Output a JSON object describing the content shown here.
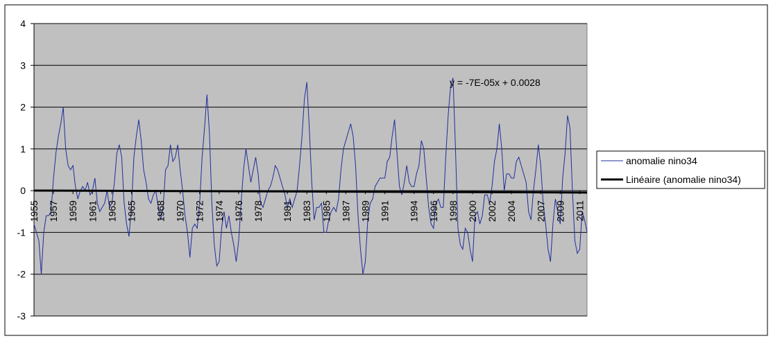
{
  "chart_data": {
    "type": "line",
    "annotation": "y = -7E-05x + 0.0028",
    "x": [
      1955,
      1955.25,
      1955.5,
      1955.75,
      1956,
      1956.25,
      1956.5,
      1956.75,
      1957,
      1957.25,
      1957.5,
      1957.75,
      1958,
      1958.25,
      1958.5,
      1958.75,
      1959,
      1959.25,
      1959.5,
      1959.75,
      1960,
      1960.25,
      1960.5,
      1960.75,
      1961,
      1961.25,
      1961.5,
      1961.75,
      1962,
      1962.25,
      1962.5,
      1962.75,
      1963,
      1963.25,
      1963.5,
      1963.75,
      1964,
      1964.25,
      1964.5,
      1964.75,
      1965,
      1965.25,
      1965.5,
      1965.75,
      1966,
      1966.25,
      1966.5,
      1966.75,
      1967,
      1967.25,
      1967.5,
      1967.75,
      1968,
      1968.25,
      1968.5,
      1968.75,
      1969,
      1969.25,
      1969.5,
      1969.75,
      1970,
      1970.25,
      1970.5,
      1970.75,
      1971,
      1971.25,
      1971.5,
      1971.75,
      1972,
      1972.25,
      1972.5,
      1972.75,
      1973,
      1973.25,
      1973.5,
      1973.75,
      1974,
      1974.25,
      1974.5,
      1974.75,
      1975,
      1975.25,
      1975.5,
      1975.75,
      1976,
      1976.25,
      1976.5,
      1976.75,
      1977,
      1977.25,
      1977.5,
      1977.75,
      1978,
      1978.25,
      1978.5,
      1978.75,
      1979,
      1979.25,
      1979.5,
      1979.75,
      1980,
      1980.25,
      1980.5,
      1980.75,
      1981,
      1981.25,
      1981.5,
      1981.75,
      1982,
      1982.25,
      1982.5,
      1982.75,
      1983,
      1983.25,
      1983.5,
      1983.75,
      1984,
      1984.25,
      1984.5,
      1984.75,
      1985,
      1985.25,
      1985.5,
      1985.75,
      1986,
      1986.25,
      1986.5,
      1986.75,
      1987,
      1987.25,
      1987.5,
      1987.75,
      1988,
      1988.25,
      1988.5,
      1988.75,
      1989,
      1989.25,
      1989.5,
      1989.75,
      1990,
      1990.25,
      1990.5,
      1990.75,
      1991,
      1991.25,
      1991.5,
      1991.75,
      1992,
      1992.25,
      1992.5,
      1992.75,
      1993,
      1993.25,
      1993.5,
      1993.75,
      1994,
      1994.25,
      1994.5,
      1994.75,
      1995,
      1995.25,
      1995.5,
      1995.75,
      1996,
      1996.25,
      1996.5,
      1996.75,
      1997,
      1997.25,
      1997.5,
      1997.75,
      1998,
      1998.25,
      1998.5,
      1998.75,
      1999,
      1999.25,
      1999.5,
      1999.75,
      2000,
      2000.25,
      2000.5,
      2000.75,
      2001,
      2001.25,
      2001.5,
      2001.75,
      2002,
      2002.25,
      2002.5,
      2002.75,
      2003,
      2003.25,
      2003.5,
      2003.75,
      2004,
      2004.25,
      2004.5,
      2004.75,
      2005,
      2005.25,
      2005.5,
      2005.75,
      2006,
      2006.25,
      2006.5,
      2006.75,
      2007,
      2007.25,
      2007.5,
      2007.75,
      2008,
      2008.25,
      2008.5,
      2008.75,
      2009,
      2009.25,
      2009.5,
      2009.75,
      2010,
      2010.25,
      2010.5,
      2010.75,
      2011,
      2011.25,
      2011.5,
      2011.75
    ],
    "series": [
      {
        "name": "anomalie nino34",
        "color": "#1f2d9c",
        "width": 1,
        "values": [
          -0.8,
          -1.0,
          -1.2,
          -2.0,
          -1.0,
          -0.6,
          -0.6,
          -0.5,
          0.3,
          0.9,
          1.3,
          1.6,
          2.0,
          1.0,
          0.6,
          0.5,
          0.6,
          0.1,
          -0.2,
          0.0,
          0.1,
          0.0,
          0.2,
          -0.1,
          0.0,
          0.3,
          -0.3,
          -0.5,
          -0.4,
          -0.3,
          0.0,
          -0.4,
          -0.3,
          0.2,
          0.9,
          1.1,
          0.8,
          -0.3,
          -0.8,
          -1.1,
          -0.4,
          0.8,
          1.3,
          1.7,
          1.2,
          0.5,
          0.2,
          -0.2,
          -0.3,
          -0.1,
          0.0,
          -0.4,
          -0.7,
          -0.4,
          0.5,
          0.6,
          1.1,
          0.7,
          0.8,
          1.1,
          0.5,
          0.0,
          -0.6,
          -1.0,
          -1.6,
          -0.9,
          -0.8,
          -0.9,
          -0.3,
          0.8,
          1.5,
          2.3,
          1.4,
          -0.3,
          -1.3,
          -1.8,
          -1.7,
          -0.9,
          -0.5,
          -0.9,
          -0.6,
          -1.0,
          -1.3,
          -1.7,
          -1.2,
          -0.3,
          0.5,
          1.0,
          0.6,
          0.2,
          0.5,
          0.8,
          0.4,
          -0.3,
          -0.4,
          -0.2,
          0.0,
          0.1,
          0.3,
          0.6,
          0.5,
          0.3,
          0.1,
          -0.1,
          -0.4,
          -0.2,
          -0.4,
          -0.2,
          0.0,
          0.6,
          1.3,
          2.2,
          2.6,
          1.5,
          0.2,
          -0.7,
          -0.4,
          -0.4,
          -0.3,
          -1.0,
          -1.0,
          -0.7,
          -0.5,
          -0.4,
          -0.5,
          -0.2,
          0.5,
          1.0,
          1.2,
          1.4,
          1.6,
          1.3,
          0.6,
          -0.6,
          -1.4,
          -2.0,
          -1.7,
          -0.7,
          -0.3,
          -0.2,
          0.1,
          0.2,
          0.3,
          0.3,
          0.3,
          0.7,
          0.8,
          1.3,
          1.7,
          0.9,
          0.1,
          -0.1,
          0.2,
          0.6,
          0.2,
          0.1,
          0.1,
          0.4,
          0.6,
          1.2,
          1.0,
          0.3,
          -0.4,
          -0.8,
          -0.9,
          -0.3,
          -0.2,
          -0.4,
          -0.4,
          0.8,
          1.8,
          2.5,
          2.7,
          1.0,
          -0.9,
          -1.3,
          -1.4,
          -0.9,
          -1.0,
          -1.4,
          -1.7,
          -0.6,
          -0.5,
          -0.8,
          -0.6,
          -0.1,
          -0.1,
          -0.3,
          0.1,
          0.7,
          1.0,
          1.6,
          1.0,
          0.0,
          0.4,
          0.4,
          0.3,
          0.3,
          0.7,
          0.8,
          0.6,
          0.4,
          0.2,
          -0.5,
          -0.7,
          0.0,
          0.5,
          1.1,
          0.6,
          -0.3,
          -0.8,
          -1.4,
          -1.7,
          -0.8,
          -0.2,
          -0.5,
          -0.8,
          0.3,
          0.9,
          1.8,
          1.5,
          0.0,
          -1.2,
          -1.5,
          -1.4,
          -0.5,
          -0.7,
          -1.0
        ]
      },
      {
        "name": "Linéaire (anomalie nino34)",
        "color": "#000000",
        "width": 3,
        "x": [
          1955,
          2011.75
        ],
        "values": [
          0.0028,
          -0.045
        ]
      }
    ],
    "xlim": [
      1955,
      2011.75
    ],
    "xticks": [
      1955,
      1957,
      1959,
      1961,
      1963,
      1965,
      1968,
      1970,
      1972,
      1974,
      1976,
      1978,
      1981,
      1983,
      1985,
      1987,
      1989,
      1991,
      1994,
      1996,
      1998,
      2000,
      2002,
      2004,
      2007,
      2009,
      2011
    ],
    "ylim": [
      -3,
      4
    ],
    "yticks": [
      -3,
      -2,
      -1,
      0,
      1,
      2,
      3,
      4
    ],
    "grid": true,
    "plot_background": "#c0c0c0",
    "legend": "right"
  }
}
